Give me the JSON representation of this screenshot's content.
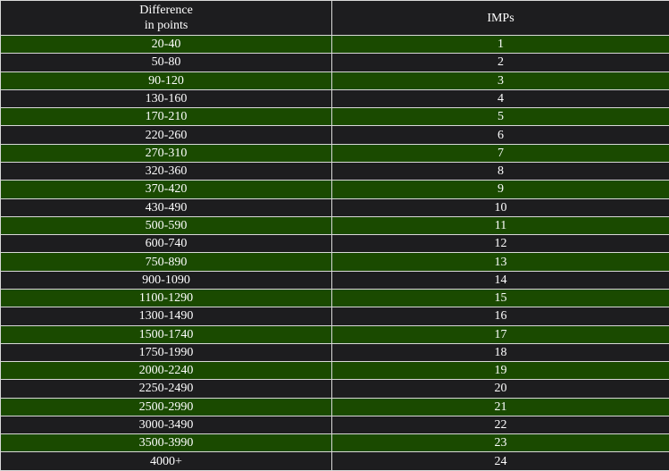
{
  "table": {
    "headers": {
      "difference_line1": "Difference",
      "difference_line2": "in points",
      "imps": "IMPs"
    },
    "rows": [
      {
        "difference": "20-40",
        "imps": "1"
      },
      {
        "difference": "50-80",
        "imps": "2"
      },
      {
        "difference": "90-120",
        "imps": "3"
      },
      {
        "difference": "130-160",
        "imps": "4"
      },
      {
        "difference": "170-210",
        "imps": "5"
      },
      {
        "difference": "220-260",
        "imps": "6"
      },
      {
        "difference": "270-310",
        "imps": "7"
      },
      {
        "difference": "320-360",
        "imps": "8"
      },
      {
        "difference": "370-420",
        "imps": "9"
      },
      {
        "difference": "430-490",
        "imps": "10"
      },
      {
        "difference": "500-590",
        "imps": "11"
      },
      {
        "difference": "600-740",
        "imps": "12"
      },
      {
        "difference": "750-890",
        "imps": "13"
      },
      {
        "difference": "900-1090",
        "imps": "14"
      },
      {
        "difference": "1100-1290",
        "imps": "15"
      },
      {
        "difference": "1300-1490",
        "imps": "16"
      },
      {
        "difference": "1500-1740",
        "imps": "17"
      },
      {
        "difference": "1750-1990",
        "imps": "18"
      },
      {
        "difference": "2000-2240",
        "imps": "19"
      },
      {
        "difference": "2250-2490",
        "imps": "20"
      },
      {
        "difference": "2500-2990",
        "imps": "21"
      },
      {
        "difference": "3000-3490",
        "imps": "22"
      },
      {
        "difference": "3500-3990",
        "imps": "23"
      },
      {
        "difference": "4000+",
        "imps": "24"
      }
    ]
  },
  "colors": {
    "row_green": "#1a4a00",
    "row_dark": "#1d1d1f",
    "border": "#d9d9d9",
    "text": "#ffffff"
  }
}
